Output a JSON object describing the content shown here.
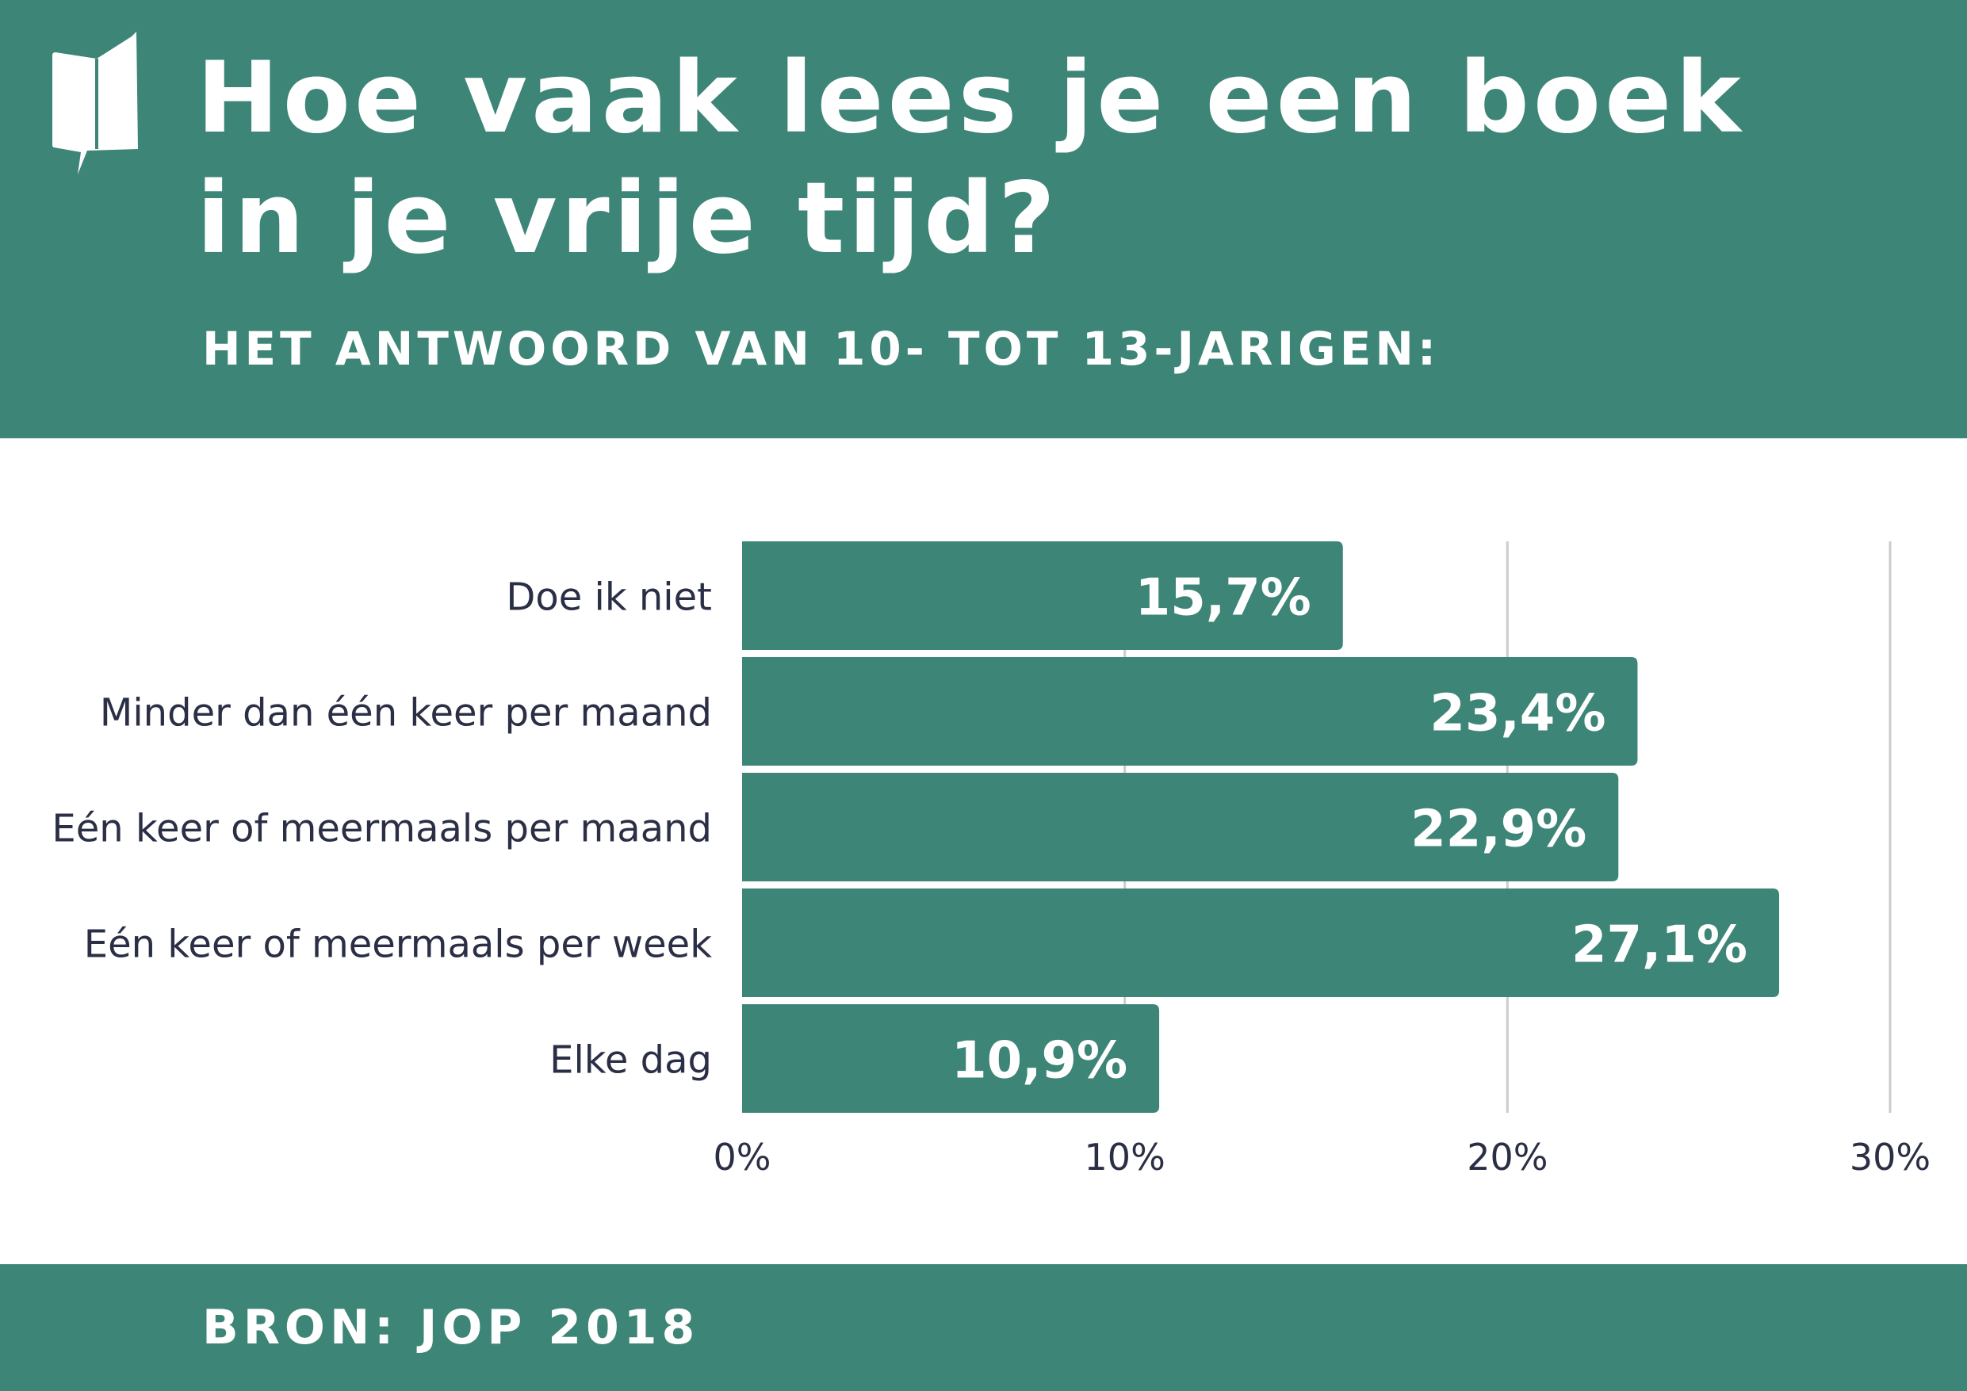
{
  "header": {
    "title_line1": "Hoe vaak lees je een boek",
    "title_line2": "in je vrije tijd?",
    "subtitle": "HET ANTWOORD VAN 10- TOT 13-JARIGEN:",
    "logo_icon": "book-speech-bubble-icon"
  },
  "footer": {
    "source": "BRON: JOP 2018"
  },
  "colors": {
    "brand": "#3d8577",
    "text": "#2b2f45",
    "grid": "#cccccc",
    "background": "#ffffff"
  },
  "chart_data": {
    "type": "bar",
    "orientation": "horizontal",
    "categories": [
      "Doe ik niet",
      "Minder dan één keer per maand",
      "Eén keer of meermaals per maand",
      "Eén keer of meermaals per week",
      "Elke dag"
    ],
    "values": [
      15.7,
      23.4,
      22.9,
      27.1,
      10.9
    ],
    "value_labels": [
      "15,7%",
      "23,4%",
      "22,9%",
      "27,1%",
      "10,9%"
    ],
    "xlim": [
      0,
      30
    ],
    "xticks": [
      0,
      10,
      20,
      30
    ],
    "xtick_labels": [
      "0%",
      "10%",
      "20%",
      "30%"
    ],
    "grid": true,
    "legend": "none"
  }
}
